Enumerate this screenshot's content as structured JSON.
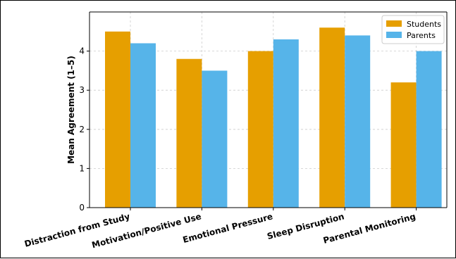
{
  "chart_data": {
    "type": "bar",
    "title": "",
    "xlabel": "",
    "ylabel": "Mean Agreement (1–5)",
    "categories": [
      "Distraction from Study",
      "Motivation/Positive Use",
      "Emotional Pressure",
      "Sleep Disruption",
      "Parental Monitoring"
    ],
    "series": [
      {
        "name": "Students",
        "values": [
          4.5,
          3.8,
          4.0,
          4.6,
          3.2
        ],
        "color": "#E69F00"
      },
      {
        "name": "Parents",
        "values": [
          4.2,
          3.5,
          4.3,
          4.4,
          4.0
        ],
        "color": "#56B4E9"
      }
    ],
    "ylim": [
      0,
      5
    ],
    "yticks": [
      "0",
      "1",
      "2",
      "3",
      "4"
    ],
    "grid": true,
    "legend_position": "top-right"
  }
}
